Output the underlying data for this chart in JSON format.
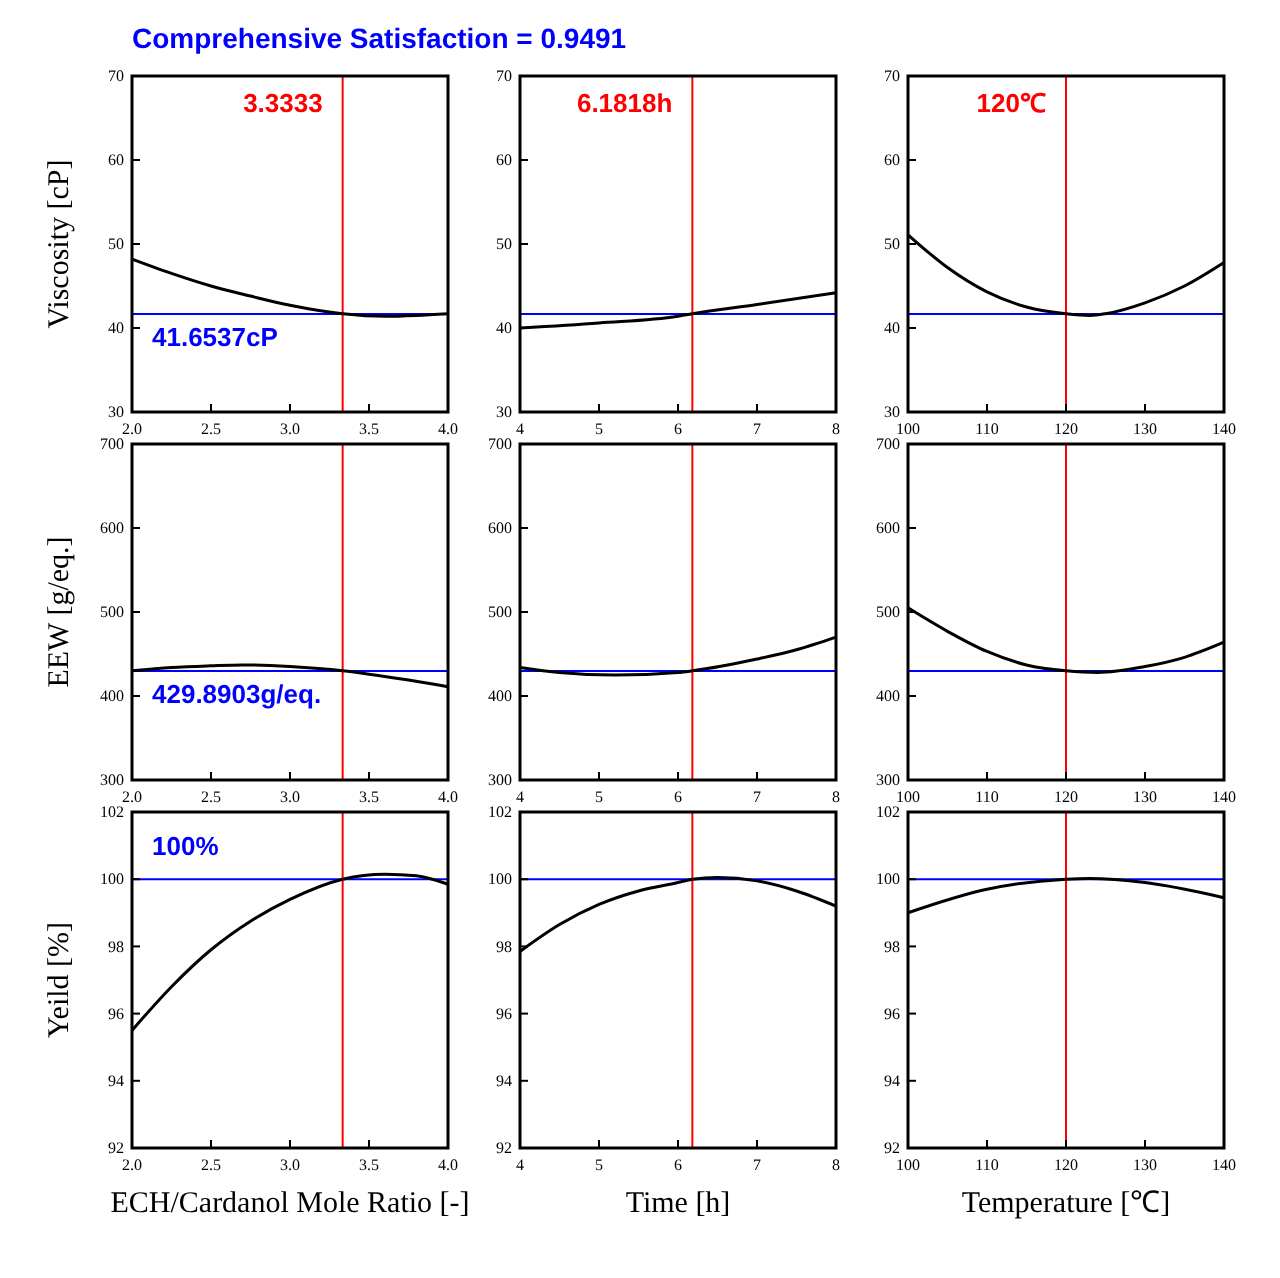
{
  "chart_data": [
    {
      "type": "line",
      "title": "Comprehensive Satisfaction = 0.9491",
      "ylabel": "Viscosity [cP]",
      "x": [
        2.0,
        2.25,
        2.5,
        2.75,
        3.0,
        3.3333,
        3.6,
        3.8,
        4.0
      ],
      "series": [
        {
          "color": "#000000",
          "values": [
            48.2,
            46.5,
            45.0,
            43.8,
            42.7,
            41.7,
            41.4,
            41.5,
            41.7
          ]
        }
      ],
      "xlim": [
        2,
        4
      ],
      "xticks": [
        {
          "value": 2,
          "label": "2.0"
        },
        {
          "value": 2.5,
          "label": "2.5"
        },
        {
          "value": 3,
          "label": "3.0"
        },
        {
          "value": 3.5,
          "label": "3.5"
        },
        {
          "value": 4,
          "label": "4.0"
        }
      ],
      "ylim": [
        30,
        70
      ],
      "yticks": [
        30,
        40,
        50,
        60,
        70
      ],
      "ref_lines": [
        {
          "axis": "x",
          "value": 3.3333,
          "label": "3.3333",
          "color": "#ff0000"
        },
        {
          "axis": "y",
          "value": 41.6537,
          "label": "41.6537cP",
          "color": "#0000ff"
        }
      ]
    },
    {
      "type": "line",
      "x": [
        4,
        5,
        6,
        6.1818,
        7,
        8
      ],
      "series": [
        {
          "color": "#000000",
          "values": [
            40.0,
            40.6,
            41.4,
            41.7,
            42.8,
            44.2
          ]
        }
      ],
      "xlim": [
        4,
        8
      ],
      "xticks": [
        4,
        5,
        6,
        7,
        8
      ],
      "ylim": [
        30,
        70
      ],
      "yticks": [
        30,
        40,
        50,
        60,
        70
      ],
      "ref_lines": [
        {
          "axis": "x",
          "value": 6.1818,
          "label": "6.1818h",
          "color": "#ff0000"
        },
        {
          "axis": "y",
          "value": 41.6537,
          "color": "#0000ff"
        }
      ]
    },
    {
      "type": "line",
      "x": [
        100,
        105,
        110,
        115,
        120,
        123,
        125,
        130,
        135,
        140
      ],
      "series": [
        {
          "color": "#000000",
          "values": [
            51.1,
            47.2,
            44.3,
            42.5,
            41.7,
            41.5,
            41.7,
            43.0,
            45.0,
            47.8
          ]
        }
      ],
      "xlim": [
        100,
        140
      ],
      "xticks": [
        100,
        110,
        120,
        130,
        140
      ],
      "ylim": [
        30,
        70
      ],
      "yticks": [
        30,
        40,
        50,
        60,
        70
      ],
      "ref_lines": [
        {
          "axis": "x",
          "value": 120,
          "label": "120℃",
          "color": "#ff0000"
        },
        {
          "axis": "y",
          "value": 41.6537,
          "color": "#0000ff"
        }
      ]
    },
    {
      "type": "line",
      "ylabel": "EEW [g/eq.]",
      "x": [
        2.0,
        2.25,
        2.5,
        2.7,
        3.0,
        3.3333,
        3.5,
        3.75,
        4.0
      ],
      "series": [
        {
          "color": "#000000",
          "values": [
            430,
            434,
            436,
            437,
            435,
            430,
            426,
            419,
            411
          ]
        }
      ],
      "xlim": [
        2,
        4
      ],
      "xticks": [
        {
          "value": 2,
          "label": "2.0"
        },
        {
          "value": 2.5,
          "label": "2.5"
        },
        {
          "value": 3,
          "label": "3.0"
        },
        {
          "value": 3.5,
          "label": "3.5"
        },
        {
          "value": 4,
          "label": "4.0"
        }
      ],
      "ylim": [
        300,
        700
      ],
      "yticks": [
        300,
        400,
        500,
        600,
        700
      ],
      "ref_lines": [
        {
          "axis": "x",
          "value": 3.3333,
          "color": "#ff0000"
        },
        {
          "axis": "y",
          "value": 429.8903,
          "label": "429.8903g/eq.",
          "color": "#0000ff"
        }
      ]
    },
    {
      "type": "line",
      "x": [
        4,
        4.5,
        5.2,
        6,
        6.1818,
        7,
        7.5,
        8
      ],
      "series": [
        {
          "color": "#000000",
          "values": [
            434,
            428,
            425,
            428,
            430,
            444,
            455,
            470
          ]
        }
      ],
      "xlim": [
        4,
        8
      ],
      "xticks": [
        4,
        5,
        6,
        7,
        8
      ],
      "ylim": [
        300,
        700
      ],
      "yticks": [
        300,
        400,
        500,
        600,
        700
      ],
      "ref_lines": [
        {
          "axis": "x",
          "value": 6.1818,
          "color": "#ff0000"
        },
        {
          "axis": "y",
          "value": 429.8903,
          "color": "#0000ff"
        }
      ]
    },
    {
      "type": "line",
      "x": [
        100,
        105,
        110,
        115,
        120,
        124,
        130,
        135,
        140
      ],
      "series": [
        {
          "color": "#000000",
          "values": [
            505,
            477,
            453,
            437,
            430,
            428,
            435,
            446,
            464
          ]
        }
      ],
      "xlim": [
        100,
        140
      ],
      "xticks": [
        100,
        110,
        120,
        130,
        140
      ],
      "ylim": [
        300,
        700
      ],
      "yticks": [
        300,
        400,
        500,
        600,
        700
      ],
      "ref_lines": [
        {
          "axis": "x",
          "value": 120,
          "color": "#ff0000"
        },
        {
          "axis": "y",
          "value": 429.8903,
          "color": "#0000ff"
        }
      ]
    },
    {
      "type": "line",
      "ylabel": "Yeild [%]",
      "xlabel": "ECH/Cardanol Mole Ratio [-]",
      "x": [
        2.0,
        2.25,
        2.5,
        2.75,
        3.0,
        3.3333,
        3.6,
        3.8,
        4.0
      ],
      "series": [
        {
          "color": "#000000",
          "values": [
            95.5,
            96.8,
            97.9,
            98.75,
            99.4,
            100,
            100.15,
            100.1,
            99.85
          ]
        }
      ],
      "xlim": [
        2,
        4
      ],
      "xticks": [
        {
          "value": 2,
          "label": "2.0"
        },
        {
          "value": 2.5,
          "label": "2.5"
        },
        {
          "value": 3,
          "label": "3.0"
        },
        {
          "value": 3.5,
          "label": "3.5"
        },
        {
          "value": 4,
          "label": "4.0"
        }
      ],
      "ylim": [
        92,
        102
      ],
      "yticks": [
        92,
        94,
        96,
        98,
        100,
        102
      ],
      "ref_lines": [
        {
          "axis": "x",
          "value": 3.3333,
          "color": "#ff0000"
        },
        {
          "axis": "y",
          "value": 100,
          "label": "100%",
          "color": "#0000ff"
        }
      ]
    },
    {
      "type": "line",
      "xlabel": "Time [h]",
      "x": [
        4,
        4.5,
        5,
        5.5,
        6,
        6.1818,
        6.5,
        7,
        7.5,
        8
      ],
      "series": [
        {
          "color": "#000000",
          "values": [
            97.85,
            98.65,
            99.25,
            99.65,
            99.9,
            100,
            100.05,
            99.95,
            99.65,
            99.2
          ]
        }
      ],
      "xlim": [
        4,
        8
      ],
      "xticks": [
        4,
        5,
        6,
        7,
        8
      ],
      "ylim": [
        92,
        102
      ],
      "yticks": [
        92,
        94,
        96,
        98,
        100,
        102
      ],
      "ref_lines": [
        {
          "axis": "x",
          "value": 6.1818,
          "color": "#ff0000"
        },
        {
          "axis": "y",
          "value": 100,
          "color": "#0000ff"
        }
      ]
    },
    {
      "type": "line",
      "xlabel": "Temperature [℃]",
      "x": [
        100,
        110,
        120,
        123,
        130,
        140
      ],
      "series": [
        {
          "color": "#000000",
          "values": [
            99.0,
            99.7,
            100,
            100.02,
            99.9,
            99.45
          ]
        }
      ],
      "xlim": [
        100,
        140
      ],
      "xticks": [
        100,
        110,
        120,
        130,
        140
      ],
      "ylim": [
        92,
        102
      ],
      "yticks": [
        92,
        94,
        96,
        98,
        100,
        102
      ],
      "ref_lines": [
        {
          "axis": "x",
          "value": 120,
          "color": "#ff0000"
        },
        {
          "axis": "y",
          "value": 100,
          "color": "#0000ff"
        }
      ]
    }
  ]
}
